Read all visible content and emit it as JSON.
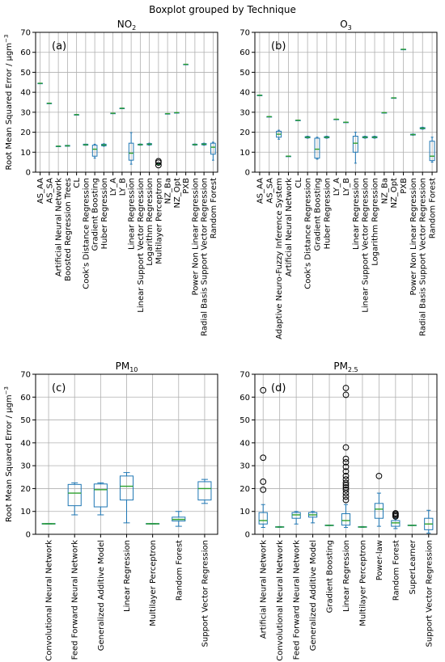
{
  "suptitle": "Boxplot grouped by Technique",
  "colors": {
    "box": "#1f77b4",
    "median": "#2ca02c",
    "grid": "#b0b0b0",
    "frame": "#000000",
    "flier": "#000000"
  },
  "chart_data": [
    {
      "type": "boxplot",
      "title": "NO",
      "title_sub": "2",
      "panel_tag": "(a)",
      "ylabel": "Root Mean Squared Error / μgm",
      "ylabel_sup": "−3",
      "ylim": [
        0,
        70
      ],
      "yticks": [
        0,
        10,
        20,
        30,
        40,
        50,
        60,
        70
      ],
      "grid": true,
      "categories": [
        "AS_AA",
        "AS_SA",
        "Artificial Neural Network",
        "Boosted Regression Trees",
        "CL",
        "Cook's Distance Regression",
        "Gradient Boosting",
        "Huber Regression",
        "LY_A",
        "LY_B",
        "Linear Regression",
        "Linear Support Vector Regression",
        "Logarithm Regression",
        "Multilayer Perceptron",
        "NZ_Ba",
        "NZ_Opt",
        "PXB",
        "Power Non Linear Regression",
        "Radial Basis Support Vector Regression",
        "Random Forest"
      ],
      "boxes": [
        {
          "whislo": 44.5,
          "q1": 44.5,
          "med": 44.5,
          "q3": 44.5,
          "whishi": 44.5,
          "fliers": []
        },
        {
          "whislo": 34.5,
          "q1": 34.5,
          "med": 34.5,
          "q3": 34.5,
          "whishi": 34.5,
          "fliers": []
        },
        {
          "whislo": 13.0,
          "q1": 13.0,
          "med": 13.0,
          "q3": 13.0,
          "whishi": 13.0,
          "fliers": []
        },
        {
          "whislo": 13.0,
          "q1": 13.0,
          "med": 13.2,
          "q3": 13.4,
          "whishi": 13.4,
          "fliers": []
        },
        {
          "whislo": 28.8,
          "q1": 28.8,
          "med": 28.8,
          "q3": 28.8,
          "whishi": 28.8,
          "fliers": []
        },
        {
          "whislo": 13.5,
          "q1": 13.5,
          "med": 13.7,
          "q3": 14.0,
          "whishi": 14.0,
          "fliers": []
        },
        {
          "whislo": 7.0,
          "q1": 8.0,
          "med": 11.5,
          "q3": 13.5,
          "whishi": 14.0,
          "fliers": []
        },
        {
          "whislo": 13.0,
          "q1": 13.2,
          "med": 13.6,
          "q3": 14.0,
          "whishi": 14.2,
          "fliers": []
        },
        {
          "whislo": 29.5,
          "q1": 29.5,
          "med": 29.5,
          "q3": 29.5,
          "whishi": 29.5,
          "fliers": []
        },
        {
          "whislo": 32.0,
          "q1": 32.0,
          "med": 32.0,
          "q3": 32.0,
          "whishi": 32.0,
          "fliers": []
        },
        {
          "whislo": 4.0,
          "q1": 6.0,
          "med": 9.5,
          "q3": 14.5,
          "whishi": 19.8,
          "fliers": []
        },
        {
          "whislo": 13.5,
          "q1": 13.6,
          "med": 13.8,
          "q3": 14.0,
          "whishi": 14.1,
          "fliers": []
        },
        {
          "whislo": 13.5,
          "q1": 13.7,
          "med": 14.0,
          "q3": 14.3,
          "whishi": 14.5,
          "fliers": []
        },
        {
          "whislo": 3.8,
          "q1": 3.9,
          "med": 4.0,
          "q3": 4.2,
          "whishi": 4.3,
          "fliers": [
            3.5,
            4.8,
            5.5
          ]
        },
        {
          "whislo": 29.3,
          "q1": 29.3,
          "med": 29.3,
          "q3": 29.3,
          "whishi": 29.3,
          "fliers": []
        },
        {
          "whislo": 29.8,
          "q1": 29.8,
          "med": 29.8,
          "q3": 29.8,
          "whishi": 29.8,
          "fliers": []
        },
        {
          "whislo": 54.0,
          "q1": 54.0,
          "med": 54.0,
          "q3": 54.0,
          "whishi": 54.0,
          "fliers": []
        },
        {
          "whislo": 13.5,
          "q1": 13.6,
          "med": 13.8,
          "q3": 14.0,
          "whishi": 14.1,
          "fliers": []
        },
        {
          "whislo": 13.5,
          "q1": 13.7,
          "med": 14.0,
          "q3": 14.3,
          "whishi": 14.5,
          "fliers": []
        },
        {
          "whislo": 6.0,
          "q1": 9.0,
          "med": 12.5,
          "q3": 14.5,
          "whishi": 15.0,
          "fliers": []
        }
      ]
    },
    {
      "type": "boxplot",
      "title": "O",
      "title_sub": "3",
      "panel_tag": "(b)",
      "ylabel": "",
      "ylabel_sup": "",
      "ylim": [
        0,
        70
      ],
      "yticks": [
        0,
        10,
        20,
        30,
        40,
        50,
        60,
        70
      ],
      "grid": true,
      "categories": [
        "AS_AA",
        "AS_SA",
        "Adaptive Neuro-Fuzzy Inference System",
        "Artificial Neural Network",
        "CL",
        "Cook's Distance Regression",
        "Gradient Boosting",
        "Huber Regression",
        "LY_A",
        "LY_B",
        "Linear Regression",
        "Linear Support Vector Regression",
        "Logarithm Regression",
        "NZ_Ba",
        "NZ_Opt",
        "PXB",
        "Power Non Linear Regression",
        "Radial Basis Support Vector Regression",
        "Random Forest"
      ],
      "boxes": [
        {
          "whislo": 38.5,
          "q1": 38.5,
          "med": 38.5,
          "q3": 38.5,
          "whishi": 38.5,
          "fliers": []
        },
        {
          "whislo": 27.8,
          "q1": 27.8,
          "med": 27.8,
          "q3": 27.8,
          "whishi": 27.8,
          "fliers": []
        },
        {
          "whislo": 16.5,
          "q1": 17.5,
          "med": 19.0,
          "q3": 20.5,
          "whishi": 21.0,
          "fliers": []
        },
        {
          "whislo": 8.0,
          "q1": 8.0,
          "med": 8.0,
          "q3": 8.0,
          "whishi": 8.0,
          "fliers": []
        },
        {
          "whislo": 26.0,
          "q1": 26.0,
          "med": 26.0,
          "q3": 26.0,
          "whishi": 26.0,
          "fliers": []
        },
        {
          "whislo": 17.0,
          "q1": 17.2,
          "med": 17.5,
          "q3": 17.8,
          "whishi": 18.0,
          "fliers": []
        },
        {
          "whislo": 6.5,
          "q1": 7.0,
          "med": 11.5,
          "q3": 17.0,
          "whishi": 17.5,
          "fliers": []
        },
        {
          "whislo": 17.0,
          "q1": 17.2,
          "med": 17.5,
          "q3": 17.8,
          "whishi": 18.0,
          "fliers": []
        },
        {
          "whislo": 26.5,
          "q1": 26.5,
          "med": 26.5,
          "q3": 26.5,
          "whishi": 26.5,
          "fliers": []
        },
        {
          "whislo": 25.0,
          "q1": 25.0,
          "med": 25.0,
          "q3": 25.0,
          "whishi": 25.0,
          "fliers": []
        },
        {
          "whislo": 4.5,
          "q1": 10.0,
          "med": 14.5,
          "q3": 18.0,
          "whishi": 20.0,
          "fliers": []
        },
        {
          "whislo": 17.0,
          "q1": 17.2,
          "med": 17.5,
          "q3": 17.8,
          "whishi": 18.0,
          "fliers": []
        },
        {
          "whislo": 17.0,
          "q1": 17.2,
          "med": 17.5,
          "q3": 17.8,
          "whishi": 18.0,
          "fliers": []
        },
        {
          "whislo": 29.8,
          "q1": 29.8,
          "med": 29.8,
          "q3": 29.8,
          "whishi": 29.8,
          "fliers": []
        },
        {
          "whislo": 37.2,
          "q1": 37.2,
          "med": 37.2,
          "q3": 37.2,
          "whishi": 37.2,
          "fliers": []
        },
        {
          "whislo": 61.5,
          "q1": 61.5,
          "med": 61.5,
          "q3": 61.5,
          "whishi": 61.5,
          "fliers": []
        },
        {
          "whislo": 18.5,
          "q1": 18.6,
          "med": 18.8,
          "q3": 19.0,
          "whishi": 19.1,
          "fliers": []
        },
        {
          "whislo": 21.5,
          "q1": 21.7,
          "med": 22.0,
          "q3": 22.3,
          "whishi": 22.5,
          "fliers": []
        },
        {
          "whislo": 5.0,
          "q1": 5.8,
          "med": 8.0,
          "q3": 15.5,
          "whishi": 17.5,
          "fliers": []
        }
      ]
    },
    {
      "type": "boxplot",
      "title": "PM",
      "title_sub": "10",
      "panel_tag": "(c)",
      "ylabel": "Root Mean Squared Error / μgm",
      "ylabel_sup": "−3",
      "ylim": [
        0,
        70
      ],
      "yticks": [
        0,
        10,
        20,
        30,
        40,
        50,
        60,
        70
      ],
      "grid": true,
      "categories": [
        "Convolutional Neural Network",
        "Feed Forward Neural Network",
        "Generalized Additive Model",
        "Linear Regression",
        "Multilayer Perceptron",
        "Random Forest",
        "Support Vector Regression"
      ],
      "boxes": [
        {
          "whislo": 4.5,
          "q1": 4.5,
          "med": 4.6,
          "q3": 4.7,
          "whishi": 4.7,
          "fliers": []
        },
        {
          "whislo": 8.5,
          "q1": 12.5,
          "med": 18.0,
          "q3": 21.8,
          "whishi": 22.5,
          "fliers": []
        },
        {
          "whislo": 8.5,
          "q1": 12.0,
          "med": 19.5,
          "q3": 22.0,
          "whishi": 22.5,
          "fliers": []
        },
        {
          "whislo": 5.0,
          "q1": 15.0,
          "med": 21.0,
          "q3": 25.5,
          "whishi": 27.0,
          "fliers": []
        },
        {
          "whislo": 4.5,
          "q1": 4.5,
          "med": 4.6,
          "q3": 4.7,
          "whishi": 4.7,
          "fliers": []
        },
        {
          "whislo": 3.5,
          "q1": 5.8,
          "med": 6.5,
          "q3": 7.5,
          "whishi": 10.0,
          "fliers": []
        },
        {
          "whislo": 13.5,
          "q1": 15.0,
          "med": 20.0,
          "q3": 23.0,
          "whishi": 24.0,
          "fliers": []
        }
      ]
    },
    {
      "type": "boxplot",
      "title": "PM",
      "title_sub": "2.5",
      "panel_tag": "(d)",
      "ylabel": "",
      "ylabel_sup": "",
      "ylim": [
        0,
        70
      ],
      "yticks": [
        0,
        10,
        20,
        30,
        40,
        50,
        60,
        70
      ],
      "grid": true,
      "categories": [
        "Artificial Neural Network",
        "Convolutional Neural Network",
        "Feed Forward Neural Network",
        "Generalized Additive Model",
        "Gradient Boosting",
        "Linear Regression",
        "Multilayer Perceptron",
        "Power-law",
        "Random Forest",
        "SuperLearner",
        "Support Vector Regression"
      ],
      "boxes": [
        {
          "whislo": 3.0,
          "q1": 4.5,
          "med": 6.0,
          "q3": 9.5,
          "whishi": 13.0,
          "fliers": [
            19.5,
            23.0,
            33.5,
            63.0
          ]
        },
        {
          "whislo": 3.0,
          "q1": 3.1,
          "med": 3.2,
          "q3": 3.3,
          "whishi": 3.4,
          "fliers": []
        },
        {
          "whislo": 4.5,
          "q1": 7.0,
          "med": 8.5,
          "q3": 9.5,
          "whishi": 10.0,
          "fliers": []
        },
        {
          "whislo": 5.0,
          "q1": 7.5,
          "med": 8.5,
          "q3": 9.5,
          "whishi": 10.0,
          "fliers": []
        },
        {
          "whislo": 3.8,
          "q1": 3.8,
          "med": 3.9,
          "q3": 4.0,
          "whishi": 4.0,
          "fliers": []
        },
        {
          "whislo": 3.0,
          "q1": 4.0,
          "med": 6.0,
          "q3": 9.0,
          "whishi": 13.0,
          "fliers": [
            15.0,
            16.5,
            18.0,
            19.5,
            20.5,
            21.5,
            22.5,
            24.0,
            25.5,
            27.5,
            29.5,
            31.5,
            33.0,
            38.0,
            61.0,
            64.0
          ]
        },
        {
          "whislo": 3.0,
          "q1": 3.1,
          "med": 3.2,
          "q3": 3.3,
          "whishi": 3.4,
          "fliers": []
        },
        {
          "whislo": 3.5,
          "q1": 7.0,
          "med": 11.0,
          "q3": 13.5,
          "whishi": 18.0,
          "fliers": [
            25.5
          ]
        },
        {
          "whislo": 2.5,
          "q1": 3.5,
          "med": 5.0,
          "q3": 6.0,
          "whishi": 7.0,
          "fliers": [
            7.8,
            8.3,
            8.8,
            9.2
          ]
        },
        {
          "whislo": 3.8,
          "q1": 3.8,
          "med": 3.9,
          "q3": 4.0,
          "whishi": 4.0,
          "fliers": []
        },
        {
          "whislo": 0.5,
          "q1": 2.0,
          "med": 4.5,
          "q3": 7.0,
          "whishi": 10.5,
          "fliers": []
        }
      ]
    }
  ]
}
